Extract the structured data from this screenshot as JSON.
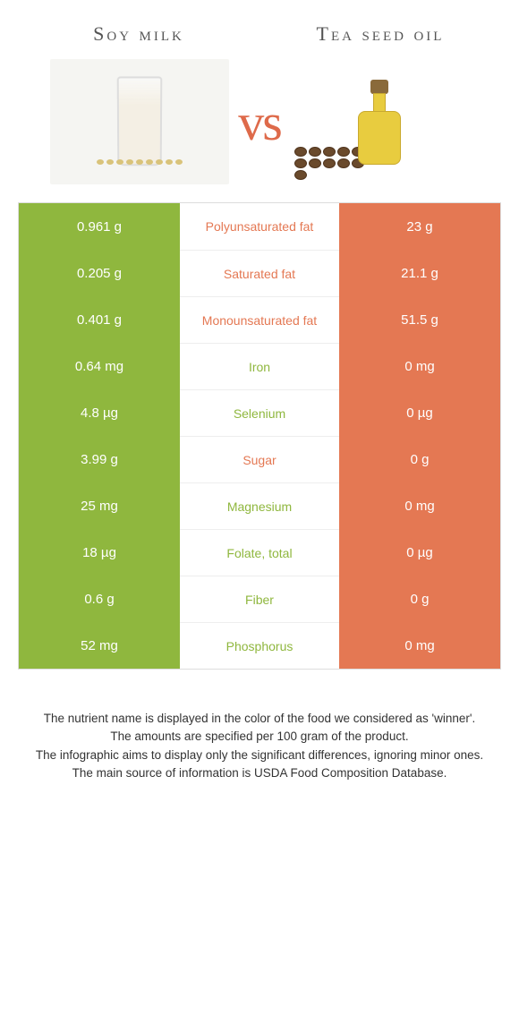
{
  "header": {
    "left_title": "Soy milk",
    "right_title": "Tea seed oil",
    "vs_text": "vs"
  },
  "colors": {
    "left_bar": "#8fb73e",
    "right_bar": "#e47853",
    "left_label": "#8fb73e",
    "right_label": "#e47853",
    "row_border": "#eeeeee",
    "table_border": "#dddddd",
    "vs_color": "#de6a4a"
  },
  "rows": [
    {
      "left": "0.961 g",
      "label": "Polyunsaturated fat",
      "right": "23 g",
      "winner": "right"
    },
    {
      "left": "0.205 g",
      "label": "Saturated fat",
      "right": "21.1 g",
      "winner": "right"
    },
    {
      "left": "0.401 g",
      "label": "Monounsaturated fat",
      "right": "51.5 g",
      "winner": "right"
    },
    {
      "left": "0.64 mg",
      "label": "Iron",
      "right": "0 mg",
      "winner": "left"
    },
    {
      "left": "4.8 µg",
      "label": "Selenium",
      "right": "0 µg",
      "winner": "left"
    },
    {
      "left": "3.99 g",
      "label": "Sugar",
      "right": "0 g",
      "winner": "right"
    },
    {
      "left": "25 mg",
      "label": "Magnesium",
      "right": "0 mg",
      "winner": "left"
    },
    {
      "left": "18 µg",
      "label": "Folate, total",
      "right": "0 µg",
      "winner": "left"
    },
    {
      "left": "0.6 g",
      "label": "Fiber",
      "right": "0 g",
      "winner": "left"
    },
    {
      "left": "52 mg",
      "label": "Phosphorus",
      "right": "0 mg",
      "winner": "left"
    }
  ],
  "footer": {
    "line1": "The nutrient name is displayed in the color of the food we considered as 'winner'.",
    "line2": "The amounts are specified per 100 gram of the product.",
    "line3": "The infographic aims to display only the significant differences, ignoring minor ones.",
    "line4": "The main source of information is USDA Food Composition Database."
  }
}
